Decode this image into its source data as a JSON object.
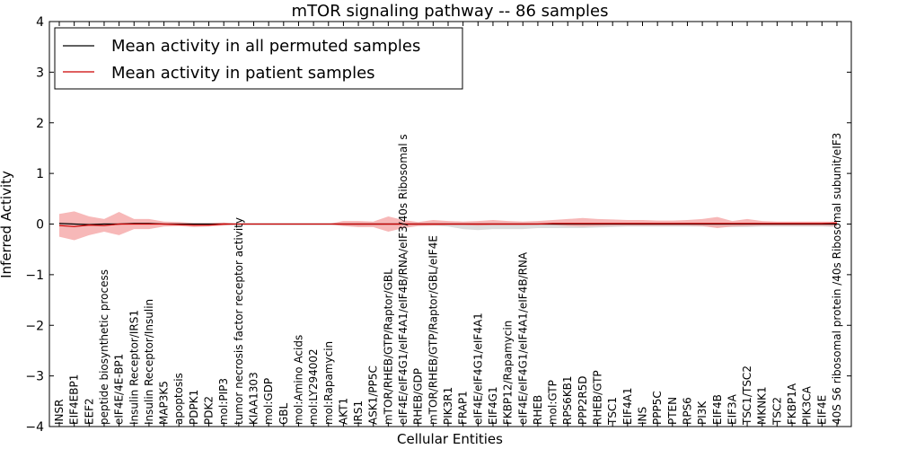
{
  "chart_data": {
    "type": "line",
    "title": "mTOR signaling pathway -- 86 samples",
    "xlabel": "Cellular Entities",
    "ylabel": "Inferred Activity",
    "ylim": [
      -4,
      4
    ],
    "yticks": [
      -4,
      -3,
      -2,
      -1,
      0,
      1,
      2,
      3,
      4
    ],
    "ytick_labels": [
      "−4",
      "−3",
      "−2",
      "−1",
      "0",
      "1",
      "2",
      "3",
      "4"
    ],
    "legend_position": "top-left",
    "categories": [
      "INSR",
      "EIF4EBP1",
      "EEF2",
      "peptide biosynthetic process",
      "eIF4E/4E-BP1",
      "Insulin Receptor/IRS1",
      "Insulin Receptor/Insulin",
      "MAP3K5",
      "apoptosis",
      "PDPK1",
      "PDK2",
      "mol:PIP3",
      "tumor necrosis factor receptor activity",
      "KIAA1303",
      "mol:GDP",
      "GBL",
      "mol:Amino Acids",
      "mol:LY294002",
      "mol:Rapamycin",
      "AKT1",
      "IRS1",
      "ASK1/PP5C",
      "mTOR/RHEB/GTP/Raptor/GBL",
      "eIF4E/eIF4G1/eIF4A1/eIF4B/RNA/eIF3/40s Ribosomal s",
      "RHEB/GDP",
      "mTOR/RHEB/GTP/Raptor/GBL/eIF4E",
      "PIK3R1",
      "FRAP1",
      "eIF4E/eIF4G1/eIF4A1",
      "EIF4G1",
      "FKBP12/Rapamycin",
      "eIF4E/eIF4G1/eIF4A1/eIF4B/RNA",
      "RHEB",
      "mol:GTP",
      "RPS6KB1",
      "PPP2R5D",
      "RHEB/GTP",
      "TSC1",
      "EIF4A1",
      "INS",
      "PPP5C",
      "PTEN",
      "RPS6",
      "PI3K",
      "EIF4B",
      "EIF3A",
      "TSC1/TSC2",
      "MKNK1",
      "TSC2",
      "FKBP1A",
      "PIK3CA",
      "EIF4E",
      "40S S6 ribosomal protein /40s Ribosomal subunit/eIF3"
    ],
    "series": [
      {
        "name": "Mean activity in all permuted samples",
        "color": "#000000",
        "band_color": "#d8d8d8",
        "values": [
          0.01,
          0.0,
          -0.01,
          0.0,
          0.0,
          0.01,
          0.01,
          0.0,
          0.0,
          0.0,
          0.0,
          0.0,
          0.0,
          0.0,
          0.0,
          0.0,
          0.0,
          0.0,
          0.0,
          0.0,
          0.0,
          0.0,
          0.0,
          0.0,
          0.0,
          0.0,
          0.0,
          0.0,
          0.0,
          0.0,
          0.0,
          0.0,
          0.0,
          0.0,
          0.0,
          0.0,
          0.0,
          0.0,
          0.0,
          0.0,
          0.0,
          0.0,
          0.0,
          0.0,
          0.0,
          0.0,
          0.0,
          0.0,
          0.0,
          0.0,
          0.0,
          0.0,
          0.0
        ],
        "band_lower": [
          -0.02,
          -0.03,
          -0.04,
          -0.02,
          -0.03,
          -0.01,
          -0.01,
          -0.01,
          -0.01,
          -0.01,
          -0.01,
          -0.01,
          0.0,
          0.0,
          0.0,
          0.0,
          0.0,
          0.0,
          0.0,
          -0.02,
          -0.04,
          -0.03,
          -0.02,
          -0.02,
          -0.03,
          -0.03,
          -0.05,
          -0.1,
          -0.12,
          -0.1,
          -0.1,
          -0.1,
          -0.08,
          -0.08,
          -0.08,
          -0.08,
          -0.07,
          -0.06,
          -0.05,
          -0.05,
          -0.05,
          -0.05,
          -0.05,
          -0.05,
          -0.06,
          -0.06,
          -0.06,
          -0.05,
          -0.05,
          -0.05,
          -0.05,
          -0.05,
          -0.06
        ],
        "band_upper": [
          0.04,
          0.03,
          0.03,
          0.03,
          0.03,
          0.03,
          0.03,
          0.02,
          0.02,
          0.01,
          0.01,
          0.01,
          0.0,
          0.0,
          0.0,
          0.0,
          0.0,
          0.0,
          0.0,
          0.01,
          0.02,
          0.02,
          0.02,
          0.02,
          0.02,
          0.02,
          0.02,
          0.02,
          0.02,
          0.02,
          0.02,
          0.02,
          0.02,
          0.02,
          0.02,
          0.02,
          0.02,
          0.02,
          0.02,
          0.02,
          0.02,
          0.02,
          0.02,
          0.02,
          0.02,
          0.02,
          0.02,
          0.02,
          0.02,
          0.02,
          0.02,
          0.02,
          0.02
        ]
      },
      {
        "name": "Mean activity in patient samples",
        "color": "#cc0000",
        "band_color": "#f4a0a0",
        "values": [
          -0.03,
          -0.05,
          -0.02,
          -0.03,
          0.0,
          0.0,
          0.0,
          0.0,
          -0.01,
          -0.02,
          -0.02,
          0.0,
          0.0,
          0.0,
          0.0,
          0.0,
          0.0,
          0.0,
          0.0,
          0.0,
          0.0,
          0.0,
          0.0,
          0.0,
          0.0,
          0.0,
          0.0,
          0.0,
          0.0,
          0.0,
          0.0,
          0.0,
          0.0,
          0.01,
          0.01,
          0.01,
          0.01,
          0.01,
          0.01,
          0.01,
          0.01,
          0.01,
          0.01,
          0.01,
          0.01,
          0.01,
          0.01,
          0.01,
          0.01,
          0.01,
          0.01,
          0.01,
          0.02
        ],
        "band_lower": [
          -0.25,
          -0.32,
          -0.22,
          -0.15,
          -0.22,
          -0.1,
          -0.1,
          -0.05,
          -0.04,
          -0.06,
          -0.05,
          -0.03,
          0.0,
          0.0,
          0.0,
          0.0,
          0.0,
          0.0,
          0.0,
          -0.04,
          -0.06,
          -0.06,
          -0.15,
          -0.08,
          -0.04,
          -0.03,
          -0.02,
          -0.02,
          -0.03,
          -0.02,
          -0.02,
          -0.02,
          -0.01,
          -0.02,
          -0.04,
          -0.05,
          -0.04,
          -0.03,
          -0.03,
          -0.03,
          -0.03,
          -0.03,
          -0.03,
          -0.04,
          -0.08,
          -0.05,
          -0.04,
          -0.03,
          -0.03,
          -0.03,
          -0.03,
          -0.03,
          -0.04
        ],
        "band_upper": [
          0.2,
          0.25,
          0.15,
          0.1,
          0.24,
          0.1,
          0.1,
          0.05,
          0.04,
          0.02,
          0.02,
          0.03,
          0.0,
          0.0,
          0.0,
          0.0,
          0.0,
          0.0,
          0.0,
          0.06,
          0.06,
          0.05,
          0.15,
          0.08,
          0.04,
          0.08,
          0.06,
          0.05,
          0.06,
          0.08,
          0.06,
          0.05,
          0.06,
          0.08,
          0.1,
          0.12,
          0.1,
          0.09,
          0.08,
          0.08,
          0.07,
          0.07,
          0.08,
          0.1,
          0.14,
          0.06,
          0.1,
          0.06,
          0.05,
          0.05,
          0.05,
          0.05,
          0.05
        ]
      }
    ]
  }
}
